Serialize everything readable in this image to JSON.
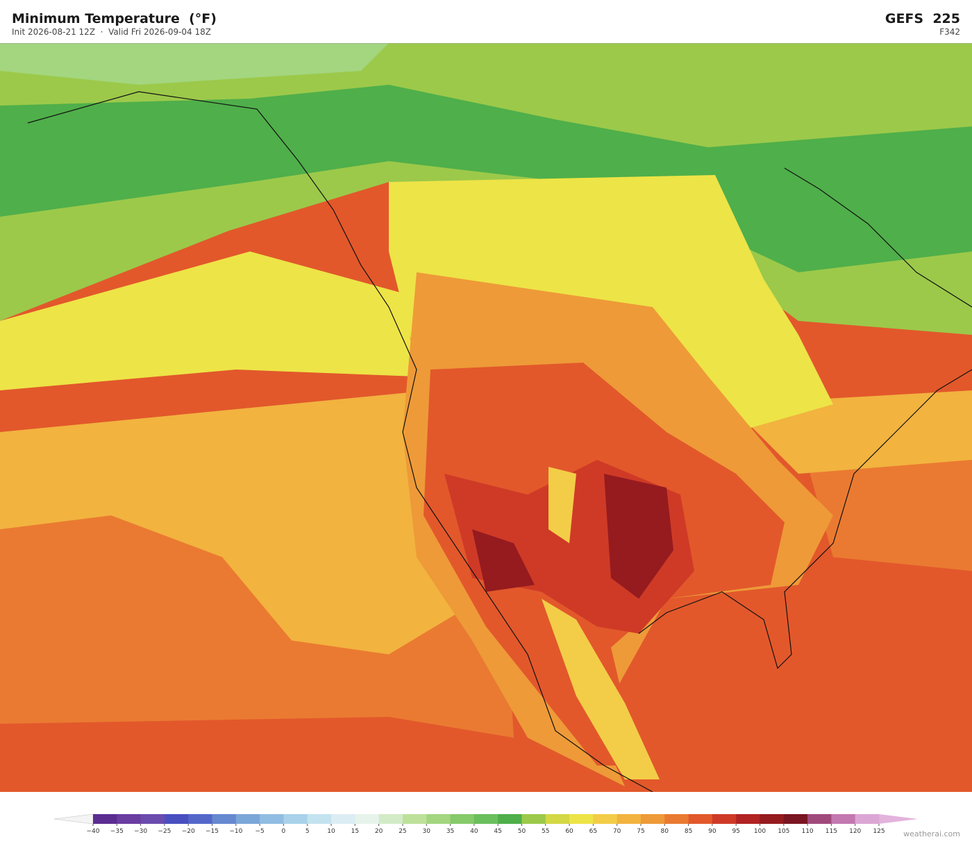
{
  "header": {
    "title": "Minimum Temperature  (°F)",
    "subtitle": "Init 2026-08-21 12Z  ·  Valid Fri 2026-09-04 18Z",
    "model": "GEFS  225",
    "forecast_hour": "F342"
  },
  "colorbar": {
    "ticks": [
      {
        "value": -40,
        "label": "−40"
      },
      {
        "value": -35,
        "label": "−35"
      },
      {
        "value": -30,
        "label": "−30"
      },
      {
        "value": -25,
        "label": "−25"
      },
      {
        "value": -20,
        "label": "−20"
      },
      {
        "value": -15,
        "label": "−15"
      },
      {
        "value": -10,
        "label": "−10"
      },
      {
        "value": -5,
        "label": "−5"
      },
      0,
      5,
      10,
      15,
      20,
      25,
      30,
      35,
      40,
      45,
      50,
      55,
      60,
      65,
      70,
      75,
      80,
      85,
      90,
      95,
      100,
      105,
      110,
      115,
      120,
      125
    ],
    "colors": [
      "#5b2d91",
      "#6a3da0",
      "#6b4cae",
      "#4a4fc0",
      "#5467c9",
      "#6688d0",
      "#7ba6d8",
      "#91bde2",
      "#a9d2ea",
      "#c4e3f0",
      "#dcedf3",
      "#e6f3ea",
      "#d4ebc8",
      "#bde19a",
      "#a3d67f",
      "#86ca6a",
      "#6bbf5c",
      "#4faf4a",
      "#9cc94a",
      "#d3d844",
      "#ede447",
      "#f3cd47",
      "#f2b33f",
      "#ee9a38",
      "#ea7a31",
      "#e2582b",
      "#cf3a26",
      "#b22323",
      "#951b1f",
      "#7a1521",
      "#a04a7c",
      "#c478b0",
      "#dca6d4"
    ],
    "under_color": "#f4f4f4",
    "over_color": "#e3b3dc"
  },
  "watermark": "weatherai.com"
}
